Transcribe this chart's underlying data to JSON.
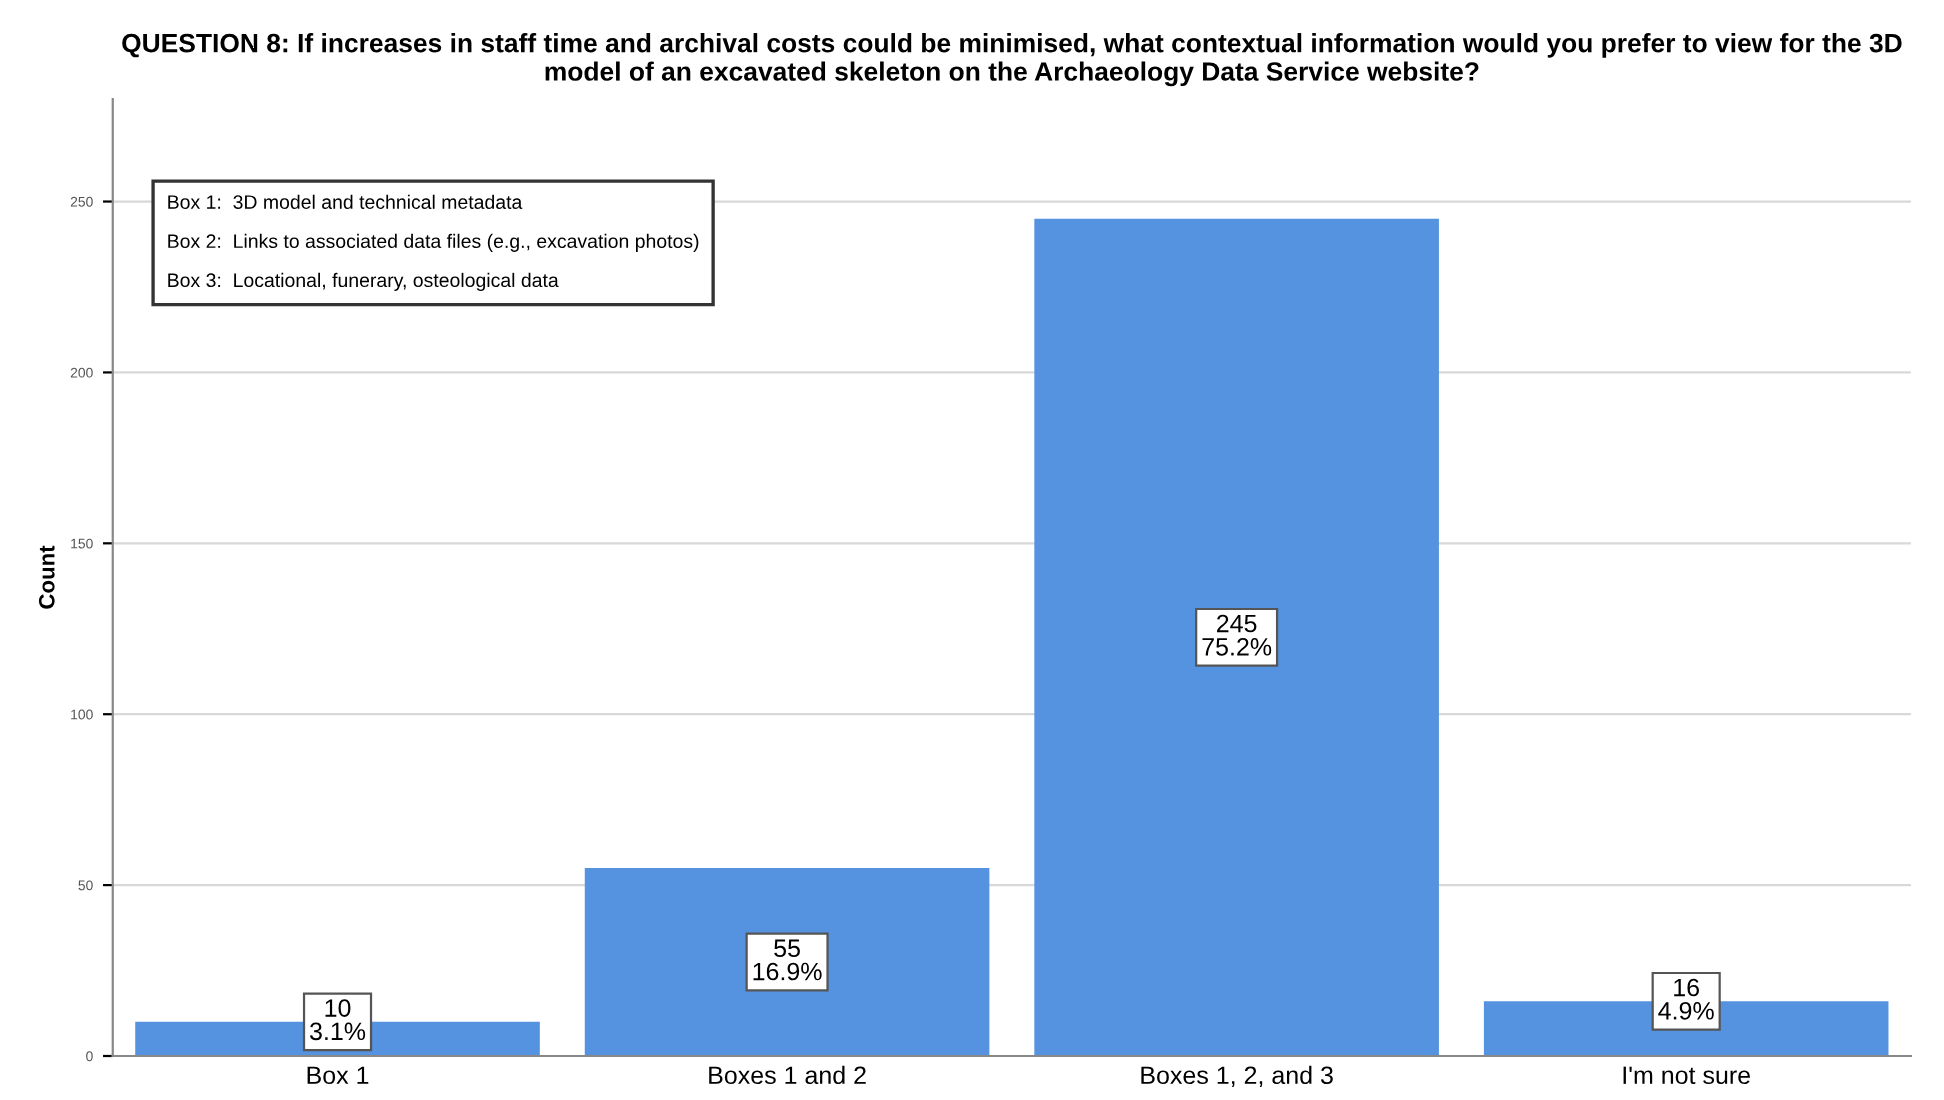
{
  "chart_data": {
    "type": "bar",
    "title": "QUESTION 8: If increases in staff time and archival costs could be minimised, what contextual information would you prefer to view for the 3D model of an excavated skeleton on the Archaeology Data Service website?",
    "ylabel": "Count",
    "categories": [
      "Box 1",
      "Boxes 1 and 2",
      "Boxes 1, 2, and 3",
      "I'm not sure"
    ],
    "values": [
      10,
      55,
      245,
      16
    ],
    "value_labels": [
      "10\n3.1%",
      "55\n16.9%",
      "245\n75.2%",
      "16\n4.9%"
    ],
    "color": "#5592e0",
    "ylim": [
      0,
      280
    ],
    "yticks": [
      0,
      50,
      100,
      150,
      200,
      250
    ],
    "grid": "y",
    "annotations": [
      "Box 1:  3D model and technical metadata",
      "Box 2:  Links to associated data files (e.g., excavation photos)",
      "Box 3:  Locational, funerary, osteological data"
    ]
  }
}
